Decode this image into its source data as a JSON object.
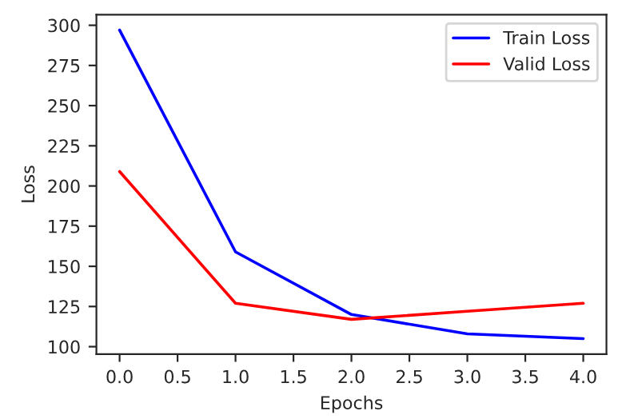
{
  "chart_data": {
    "type": "line",
    "xlabel": "Epochs",
    "ylabel": "Loss",
    "x": [
      0,
      1,
      2,
      3,
      4
    ],
    "series": [
      {
        "name": "Train Loss",
        "color": "#0000ff",
        "values": [
          297,
          159,
          120,
          108,
          105
        ]
      },
      {
        "name": "Valid Loss",
        "color": "#ff0000",
        "values": [
          209,
          127,
          117,
          122,
          127
        ]
      }
    ],
    "xlim": [
      -0.2,
      4.2
    ],
    "xticks": [
      {
        "value": 0,
        "label": "0.0"
      },
      {
        "value": 0.5,
        "label": "0.5"
      },
      {
        "value": 1,
        "label": "1.0"
      },
      {
        "value": 1.5,
        "label": "1.5"
      },
      {
        "value": 2,
        "label": "2.0"
      },
      {
        "value": 2.5,
        "label": "2.5"
      },
      {
        "value": 3,
        "label": "3.0"
      },
      {
        "value": 3.5,
        "label": "3.5"
      },
      {
        "value": 4,
        "label": "4.0"
      }
    ],
    "ylim": [
      95.4,
      306.6
    ],
    "yticks": [
      100,
      125,
      150,
      175,
      200,
      225,
      250,
      275,
      300
    ],
    "legend": "top right",
    "grid": false
  }
}
